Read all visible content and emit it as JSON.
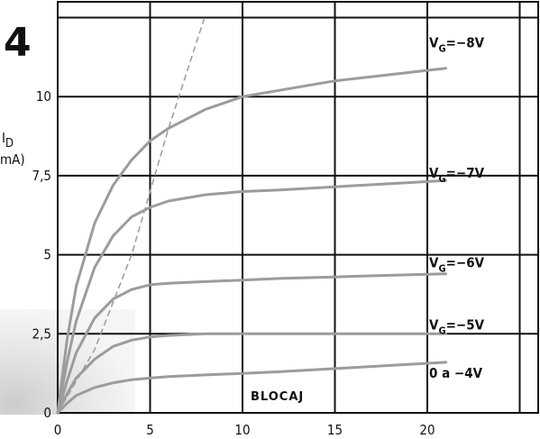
{
  "figure_number": "4",
  "chart_data": {
    "type": "line",
    "title": "",
    "xlabel": "",
    "ylabel_main": "I",
    "ylabel_sub": "D",
    "ylabel_unit": "mA)",
    "xlim": [
      0,
      26
    ],
    "ylim": [
      0,
      13
    ],
    "grid": true,
    "x_ticks": [
      {
        "value": 0,
        "label": "0"
      },
      {
        "value": 5,
        "label": "5"
      },
      {
        "value": 10,
        "label": "10"
      },
      {
        "value": 15,
        "label": "15"
      },
      {
        "value": 20,
        "label": "20"
      }
    ],
    "y_ticks": [
      {
        "value": 0,
        "label": "0"
      },
      {
        "value": 2.5,
        "label": "2,5"
      },
      {
        "value": 5,
        "label": "5"
      },
      {
        "value": 7.5,
        "label": "7,5"
      },
      {
        "value": 10,
        "label": "10"
      }
    ],
    "series": [
      {
        "label_main": "V",
        "label_sub": "G",
        "label_rest": "=−8V",
        "x": [
          0,
          0.5,
          1,
          2,
          3,
          4,
          5,
          6,
          8,
          10,
          12,
          15,
          18,
          21
        ],
        "y": [
          0,
          2.3,
          4.0,
          6.0,
          7.2,
          8.0,
          8.6,
          9.0,
          9.6,
          10.0,
          10.2,
          10.5,
          10.7,
          10.9
        ]
      },
      {
        "label_main": "V",
        "label_sub": "G",
        "label_rest": "=−7V",
        "x": [
          0,
          0.5,
          1,
          2,
          3,
          4,
          5,
          6,
          8,
          10,
          12,
          15,
          18,
          21
        ],
        "y": [
          0,
          1.6,
          2.9,
          4.6,
          5.6,
          6.2,
          6.5,
          6.7,
          6.9,
          7.0,
          7.05,
          7.15,
          7.25,
          7.35
        ]
      },
      {
        "label_main": "V",
        "label_sub": "G",
        "label_rest": "=−6V",
        "x": [
          0,
          0.5,
          1,
          2,
          3,
          4,
          5,
          6,
          8,
          10,
          12,
          15,
          18,
          21
        ],
        "y": [
          0,
          1.0,
          1.9,
          3.0,
          3.6,
          3.9,
          4.05,
          4.1,
          4.15,
          4.2,
          4.25,
          4.3,
          4.35,
          4.4
        ]
      },
      {
        "label_main": "V",
        "label_sub": "G",
        "label_rest": "=−5V",
        "x": [
          0,
          0.5,
          1,
          2,
          3,
          4,
          5,
          6,
          8,
          10,
          12,
          15,
          18,
          21
        ],
        "y": [
          0,
          0.6,
          1.1,
          1.7,
          2.1,
          2.3,
          2.4,
          2.45,
          2.5,
          2.5,
          2.5,
          2.5,
          2.5,
          2.5
        ]
      },
      {
        "label_main": "0 a −4V",
        "label_sub": "",
        "label_rest": "",
        "x": [
          0,
          0.5,
          1,
          2,
          3,
          4,
          5,
          6,
          8,
          10,
          12,
          15,
          18,
          21
        ],
        "y": [
          0,
          0.3,
          0.55,
          0.8,
          0.95,
          1.05,
          1.1,
          1.15,
          1.2,
          1.25,
          1.3,
          1.4,
          1.5,
          1.6
        ]
      }
    ],
    "saturation_boundary": {
      "x": [
        0,
        2,
        4,
        6,
        8
      ],
      "y": [
        0,
        2.0,
        5.0,
        9.0,
        12.6
      ]
    },
    "annotation": "BLOCAJ"
  }
}
